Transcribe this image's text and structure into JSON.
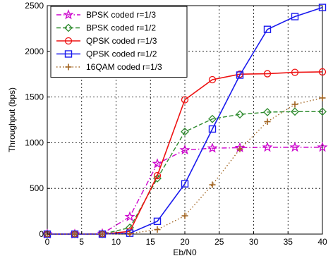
{
  "chart_data": {
    "type": "line",
    "title": "",
    "xlabel": "Eb/N0",
    "ylabel": "Throughput (bps)",
    "xlim": [
      0,
      40
    ],
    "ylim": [
      0,
      2500
    ],
    "xticks": [
      0,
      5,
      10,
      15,
      20,
      25,
      30,
      35,
      40
    ],
    "yticks": [
      0,
      500,
      1000,
      1500,
      2000,
      2500
    ],
    "grid": true,
    "legend_position": "top-left",
    "x": [
      0,
      4,
      8,
      12,
      16,
      20,
      24,
      28,
      32,
      36,
      40
    ],
    "series": [
      {
        "name": "BPSK coded r=1/3",
        "color": "#cc00cc",
        "dash": "dashdot",
        "marker": "star",
        "values": [
          0,
          0,
          5,
          190,
          770,
          920,
          940,
          945,
          950,
          950,
          950
        ]
      },
      {
        "name": "BPSK coded r=1/2",
        "color": "#2e8b2e",
        "dash": "dashed",
        "marker": "diamond",
        "values": [
          0,
          0,
          0,
          70,
          610,
          1120,
          1260,
          1310,
          1335,
          1340,
          1340
        ]
      },
      {
        "name": "QPSK coded r=1/3",
        "color": "#ee1111",
        "dash": "solid",
        "marker": "circle",
        "values": [
          0,
          0,
          0,
          30,
          640,
          1470,
          1690,
          1750,
          1755,
          1770,
          1775
        ]
      },
      {
        "name": "QPSK coded r=1/2",
        "color": "#1a1aee",
        "dash": "solid",
        "marker": "square",
        "values": [
          0,
          0,
          0,
          10,
          140,
          550,
          1150,
          1740,
          2240,
          2380,
          2480
        ]
      },
      {
        "name": "16QAM coded r=1/3",
        "color": "#a0621e",
        "dash": "dotted",
        "marker": "plus",
        "values": [
          0,
          0,
          0,
          5,
          50,
          200,
          540,
          930,
          1230,
          1420,
          1490
        ]
      }
    ]
  }
}
